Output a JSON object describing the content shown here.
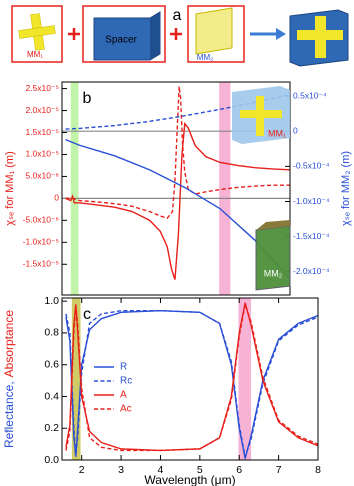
{
  "panel_a": {
    "label": "a",
    "mm1": "MM₁",
    "spacer": "Spacer",
    "mm2": "MM₂"
  },
  "chart_data": [
    {
      "type": "line",
      "panel_label": "b",
      "ylabel": "χₛₑ for MM₁ (m)",
      "ycolor": "#e8201c",
      "y2label": "χₛₑ for MM₂ (m)",
      "y2color": "#2a4fd6",
      "inset_labels": [
        "MM₁",
        "MM₂"
      ],
      "xlim": [
        1.5,
        8
      ],
      "ylim": [
        -2.2e-05,
        2.65e-05
      ],
      "yticks": [
        {
          "value": 2.5e-05,
          "label": "2.5x10⁻⁵"
        },
        {
          "value": 2e-05,
          "label": "2.0x10⁻⁵"
        },
        {
          "value": 1.5e-05,
          "label": "1.5x10⁻⁵"
        },
        {
          "value": 1e-05,
          "label": "1.0x10⁻⁵"
        },
        {
          "value": 5e-06,
          "label": "5.0x10⁻⁶"
        },
        0,
        {
          "value": -5e-06,
          "label": "-5.0x10⁻⁶"
        },
        {
          "value": -1e-05,
          "label": "-1.0x10⁻⁵"
        },
        {
          "value": -1.5e-05,
          "label": "-1.5x10⁻⁵"
        }
      ],
      "y2lim": [
        -0.000233,
        7e-05
      ],
      "y2ticks": [
        {
          "value": 5e-05,
          "label": "0.5x10⁻⁴"
        },
        0,
        {
          "value": -5e-05,
          "label": "-0.5x10⁻⁴"
        },
        {
          "value": -0.0001,
          "label": "-1.0x10⁻⁴"
        },
        {
          "value": -0.00015,
          "label": "-1.5x10⁻⁴"
        },
        {
          "value": -0.0002,
          "label": "-2.0x10⁻⁴"
        }
      ],
      "zero_lines": true,
      "bands": [
        {
          "xmin": 1.75,
          "xmax": 1.97,
          "color": "#b6f29a"
        },
        {
          "xmin": 5.98,
          "xmax": 6.3,
          "color": "#f5a6cf"
        }
      ],
      "series": [
        {
          "color": "#e8201c",
          "dash": false,
          "x": [
            1.6,
            1.75,
            1.8,
            1.85,
            2,
            2.5,
            3,
            3.5,
            4,
            4.3,
            4.5,
            4.62,
            4.72,
            4.82,
            4.92,
            5.0,
            5.1,
            5.3,
            5.6,
            6,
            6.5,
            7,
            7.5,
            8
          ],
          "values": [
            0,
            -5e-07,
            5e-07,
            -1e-06,
            -1e-06,
            -1.5e-06,
            -2e-06,
            -3e-06,
            -5e-06,
            -7.5e-06,
            -1.1e-05,
            -1.6e-05,
            -1.85e-05,
            -8e-06,
            1e-05,
            1.7e-05,
            1.6e-05,
            1.2e-05,
            9.5e-06,
            8.2e-06,
            7.5e-06,
            7e-06,
            6.7e-06,
            6.5e-06
          ]
        },
        {
          "color": "#e8201c",
          "dash": true,
          "x": [
            1.6,
            1.8,
            2,
            2.5,
            3,
            3.5,
            4,
            4.3,
            4.5,
            4.65,
            4.72,
            4.78,
            4.84,
            4.88,
            4.94,
            5.0,
            5.1,
            5.3,
            5.6,
            6,
            6.5,
            7,
            7.5,
            8
          ],
          "values": [
            0,
            0,
            -5e-07,
            -8e-07,
            -1.2e-06,
            -1.8e-06,
            -3e-06,
            -4e-06,
            -4.5e-06,
            -3e-06,
            4e-06,
            1.5e-05,
            2.55e-05,
            2.3e-05,
            1.2e-05,
            6e-06,
            2e-06,
            1e-06,
            1.5e-06,
            2e-06,
            2.5e-06,
            2.8e-06,
            3e-06,
            3e-06
          ]
        },
        {
          "color": "#2a4fd6",
          "dash": false,
          "axis": "y2",
          "x": [
            1.6,
            2,
            3,
            4,
            5,
            6,
            7,
            8
          ],
          "values": [
            -1.2e-05,
            -2e-05,
            -3.5e-05,
            -5.5e-05,
            -8e-05,
            -0.00011,
            -0.000155,
            -0.00021
          ]
        },
        {
          "color": "#2a4fd6",
          "dash": true,
          "axis": "y2",
          "x": [
            1.6,
            2,
            3,
            4,
            5,
            6,
            7,
            8
          ],
          "values": [
            3e-06,
            4e-06,
            8e-06,
            1.4e-05,
            2.2e-05,
            3.1e-05,
            4.1e-05,
            5.2e-05
          ]
        }
      ]
    },
    {
      "type": "line",
      "panel_label": "c",
      "ylabel_parts": [
        {
          "text": "Reflectance,",
          "color": "#2a4fd6"
        },
        {
          "text": "Absorptance",
          "color": "#e8201c"
        }
      ],
      "xlabel": "Wavelength (μm)",
      "xlim": [
        1.5,
        8
      ],
      "xticks": [
        2,
        3,
        4,
        5,
        6,
        7,
        8
      ],
      "ylim": [
        0,
        1.02
      ],
      "yticks": [
        {
          "value": 0,
          "label": "0.0"
        },
        0.2,
        0.4,
        0.6,
        0.8,
        {
          "value": 1,
          "label": "1.0"
        }
      ],
      "legend": "center left",
      "bands": [
        {
          "xmin": 1.75,
          "xmax": 1.97,
          "color": "#c9c24a"
        },
        {
          "xmin": 5.98,
          "xmax": 6.3,
          "color": "#f5a6cf"
        }
      ],
      "series": [
        {
          "name": "R",
          "color": "#2a4fd6",
          "dash": false,
          "x": [
            1.6,
            1.7,
            1.8,
            1.85,
            1.9,
            2.0,
            2.2,
            2.5,
            3,
            4,
            5,
            5.5,
            5.8,
            6.0,
            6.15,
            6.3,
            6.6,
            7,
            7.5,
            8
          ],
          "values": [
            0.9,
            0.75,
            0.15,
            0.02,
            0.2,
            0.6,
            0.82,
            0.89,
            0.93,
            0.94,
            0.93,
            0.86,
            0.6,
            0.2,
            0.01,
            0.15,
            0.5,
            0.76,
            0.86,
            0.91
          ]
        },
        {
          "name": "Rc",
          "color": "#2a4fd6",
          "dash": true,
          "x": [
            1.6,
            1.7,
            1.8,
            1.85,
            1.9,
            2.0,
            2.2,
            2.5,
            3,
            4,
            5,
            5.5,
            5.8,
            6.0,
            6.15,
            6.3,
            6.6,
            7,
            7.5,
            8
          ],
          "values": [
            0.92,
            0.8,
            0.2,
            0.03,
            0.15,
            0.55,
            0.86,
            0.92,
            0.94,
            0.94,
            0.93,
            0.86,
            0.62,
            0.22,
            0.02,
            0.13,
            0.48,
            0.75,
            0.85,
            0.9
          ]
        },
        {
          "name": "A",
          "color": "#e8201c",
          "dash": false,
          "x": [
            1.6,
            1.7,
            1.8,
            1.85,
            1.9,
            2.0,
            2.2,
            2.5,
            3,
            4,
            5,
            5.5,
            5.8,
            6.0,
            6.15,
            6.3,
            6.6,
            7,
            7.5,
            8
          ],
          "values": [
            0.08,
            0.22,
            0.85,
            0.98,
            0.8,
            0.4,
            0.18,
            0.11,
            0.07,
            0.06,
            0.07,
            0.14,
            0.4,
            0.8,
            0.99,
            0.85,
            0.5,
            0.24,
            0.14,
            0.09
          ]
        },
        {
          "name": "Ac",
          "color": "#e8201c",
          "dash": true,
          "x": [
            1.6,
            1.7,
            1.8,
            1.85,
            1.9,
            2.0,
            2.2,
            2.5,
            3,
            4,
            5,
            5.5,
            5.8,
            6.0,
            6.15,
            6.3,
            6.6,
            7,
            7.5,
            8
          ],
          "values": [
            0.06,
            0.18,
            0.8,
            0.97,
            0.85,
            0.45,
            0.14,
            0.08,
            0.06,
            0.06,
            0.07,
            0.14,
            0.38,
            0.78,
            0.98,
            0.87,
            0.52,
            0.25,
            0.15,
            0.1
          ]
        }
      ]
    }
  ]
}
